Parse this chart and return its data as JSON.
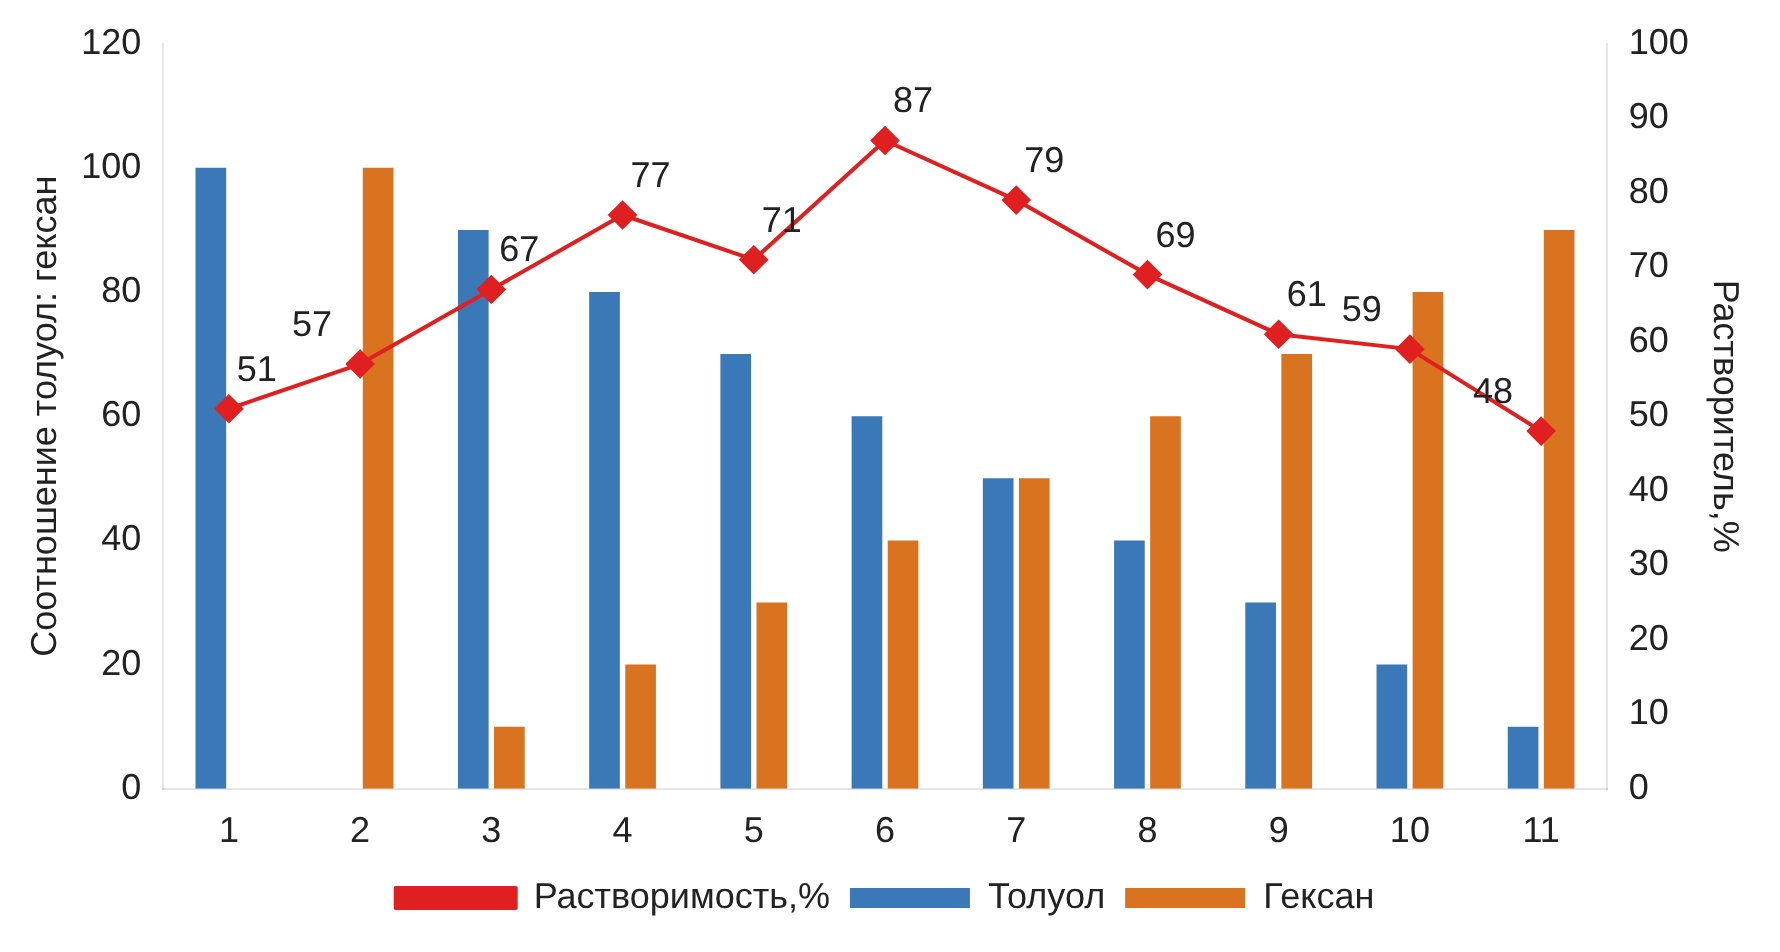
{
  "chart_data": {
    "type": "bar",
    "ylabel": "Соотношение толуол: гексан",
    "y2label": "Растворитель,%",
    "categories": [
      "1",
      "2",
      "3",
      "4",
      "5",
      "6",
      "7",
      "8",
      "9",
      "10",
      "11"
    ],
    "series": [
      {
        "name": "Толуол",
        "color": "#3a78b8",
        "values": [
          100,
          0,
          90,
          80,
          70,
          60,
          50,
          40,
          30,
          20,
          10
        ]
      },
      {
        "name": "Гексан",
        "color": "#d9731f",
        "values": [
          0,
          100,
          10,
          20,
          30,
          40,
          50,
          60,
          70,
          80,
          90
        ]
      },
      {
        "name": "Растворимость,%",
        "type": "line",
        "axis": "y2",
        "color": "#e02020",
        "marker": "diamond",
        "values": [
          51,
          57,
          67,
          77,
          71,
          87,
          79,
          69,
          61,
          59,
          48
        ],
        "value_labels": [
          "51",
          "57",
          "67",
          "77",
          "71",
          "87",
          "79",
          "69",
          "61",
          "59",
          "48"
        ]
      }
    ],
    "ylim": [
      0,
      120
    ],
    "yticks": [
      0,
      20,
      40,
      60,
      80,
      100,
      120
    ],
    "y2lim": [
      0,
      100
    ],
    "y2ticks": [
      0,
      10,
      20,
      30,
      40,
      50,
      60,
      70,
      80,
      90,
      100
    ],
    "grid": false,
    "legend": "bottom"
  }
}
